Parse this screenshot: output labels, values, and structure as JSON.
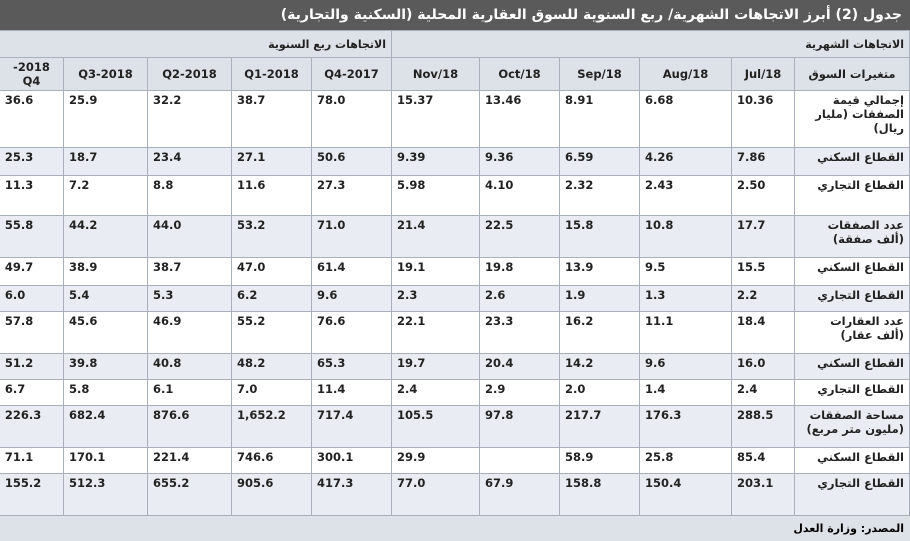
{
  "header": {
    "title": "جدول (2) أبرز الاتجاهات الشهرية/ ربع السنوية للسوق العقارية المحلية (السكنية والتجارية)"
  },
  "table": {
    "group_headers": {
      "monthly": "الاتجاهات الشهرية",
      "quarterly": "الاتجاهات ربع السنوية"
    },
    "label_header": "متغيرات السوق",
    "columns": [
      "Jul/18",
      "Aug/18",
      "Sep/18",
      "Oct/18",
      "Nov/18",
      "2017-Q4",
      "2018-Q1",
      "2018-Q2",
      "2018-Q3",
      "2018-Q4"
    ],
    "rows": [
      {
        "label": "إجمالي قيمة الصفقات (مليار ريال)",
        "values": [
          "10.36",
          "6.68",
          "8.91",
          "13.46",
          "15.37",
          "78.0",
          "38.7",
          "32.2",
          "25.9",
          "36.6"
        ]
      },
      {
        "label": "القطاع السكني",
        "values": [
          "7.86",
          "4.26",
          "6.59",
          "9.36",
          "9.39",
          "50.6",
          "27.1",
          "23.4",
          "18.7",
          "25.3"
        ]
      },
      {
        "label": "القطاع التجاري",
        "values": [
          "2.50",
          "2.43",
          "2.32",
          "4.10",
          "5.98",
          "27.3",
          "11.6",
          "8.8",
          "7.2",
          "11.3"
        ]
      },
      {
        "label": "عدد الصفقات (ألف صفقة)",
        "values": [
          "17.7",
          "10.8",
          "15.8",
          "22.5",
          "21.4",
          "71.0",
          "53.2",
          "44.0",
          "44.2",
          "55.8"
        ]
      },
      {
        "label": "القطاع السكني",
        "values": [
          "15.5",
          "9.5",
          "13.9",
          "19.8",
          "19.1",
          "61.4",
          "47.0",
          "38.7",
          "38.9",
          "49.7"
        ]
      },
      {
        "label": "القطاع التجاري",
        "values": [
          "2.2",
          "1.3",
          "1.9",
          "2.6",
          "2.3",
          "9.6",
          "6.2",
          "5.3",
          "5.4",
          "6.0"
        ]
      },
      {
        "label": "عدد العقارات (ألف عقار)",
        "values": [
          "18.4",
          "11.1",
          "16.2",
          "23.3",
          "22.1",
          "76.6",
          "55.2",
          "46.9",
          "45.6",
          "57.8"
        ]
      },
      {
        "label": "القطاع السكني",
        "values": [
          "16.0",
          "9.6",
          "14.2",
          "20.4",
          "19.7",
          "65.3",
          "48.2",
          "40.8",
          "39.8",
          "51.2"
        ]
      },
      {
        "label": "القطاع التجاري",
        "values": [
          "2.4",
          "1.4",
          "2.0",
          "2.9",
          "2.4",
          "11.4",
          "7.0",
          "6.1",
          "5.8",
          "6.7"
        ]
      },
      {
        "label": "مساحة الصفقات (مليون متر مربع)",
        "values": [
          "288.5",
          "176.3",
          "217.7",
          "97.8",
          "105.5",
          "717.4",
          "1,652.2",
          "876.6",
          "682.4",
          "226.3"
        ]
      },
      {
        "label": "القطاع السكني",
        "values": [
          "85.4",
          "25.8",
          "58.9",
          null,
          "29.9",
          "300.1",
          "746.6",
          "221.4",
          "170.1",
          "71.1"
        ]
      },
      {
        "label": "القطاع التجاري",
        "values": [
          "203.1",
          "150.4",
          "158.8",
          "67.9",
          "77.0",
          "417.3",
          "905.6",
          "655.2",
          "512.3",
          "155.2"
        ]
      }
    ]
  },
  "footer": {
    "source": "المصدر: وزارة العدل"
  }
}
